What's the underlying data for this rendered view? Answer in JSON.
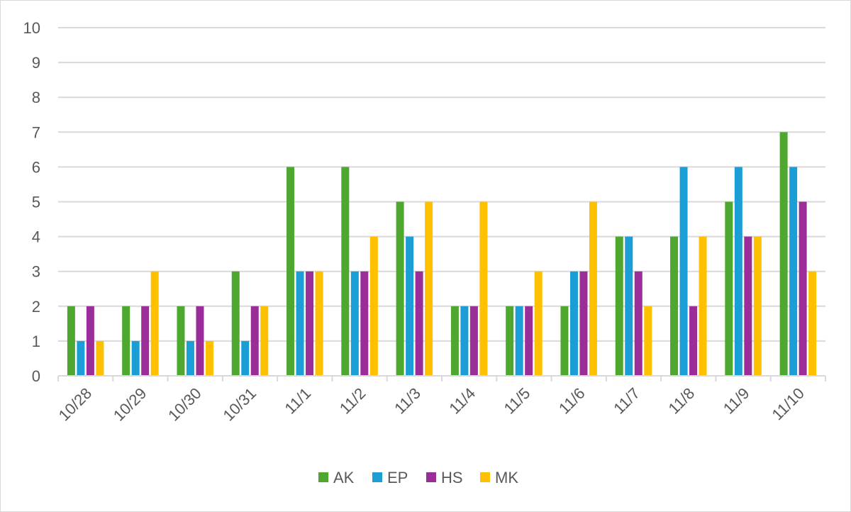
{
  "chart_data": {
    "type": "bar",
    "title": "",
    "xlabel": "",
    "ylabel": "",
    "ylim": [
      0,
      10
    ],
    "yticks": [
      0,
      1,
      2,
      3,
      4,
      5,
      6,
      7,
      8,
      9,
      10
    ],
    "grid": true,
    "legend_position": "bottom",
    "categories": [
      "10/28",
      "10/29",
      "10/30",
      "10/31",
      "11/1",
      "11/2",
      "11/3",
      "11/4",
      "11/5",
      "11/6",
      "11/7",
      "11/8",
      "11/9",
      "11/10"
    ],
    "series": [
      {
        "name": "AK",
        "color": "#4ea72e",
        "values": [
          2,
          2,
          2,
          3,
          6,
          6,
          5,
          2,
          2,
          2,
          4,
          4,
          5,
          7
        ]
      },
      {
        "name": "EP",
        "color": "#1b9ed6",
        "values": [
          1,
          1,
          1,
          1,
          3,
          3,
          4,
          2,
          2,
          3,
          4,
          6,
          6,
          6
        ]
      },
      {
        "name": "HS",
        "color": "#9b2d98",
        "values": [
          2,
          2,
          2,
          2,
          3,
          3,
          3,
          2,
          2,
          3,
          3,
          2,
          4,
          5
        ]
      },
      {
        "name": "MK",
        "color": "#ffc000",
        "values": [
          1,
          3,
          1,
          2,
          3,
          4,
          5,
          5,
          3,
          5,
          2,
          4,
          4,
          3
        ]
      }
    ]
  }
}
